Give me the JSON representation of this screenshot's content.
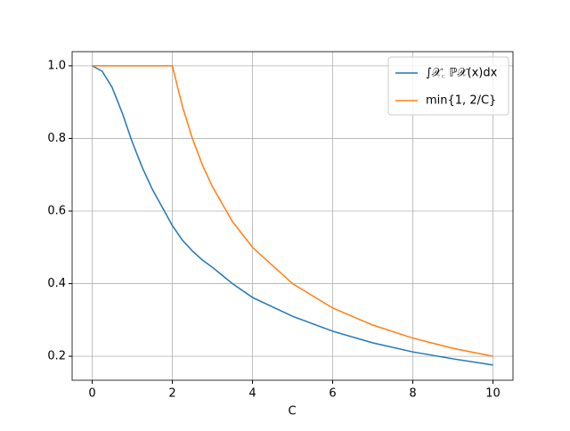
{
  "chart_data": {
    "type": "line",
    "xlabel": "C",
    "x": [
      0,
      0.25,
      0.5,
      0.75,
      1,
      1.25,
      1.5,
      1.75,
      2,
      2.25,
      2.5,
      2.75,
      3,
      3.5,
      4,
      5,
      6,
      7,
      8,
      9,
      10
    ],
    "series": [
      {
        "name": "∫𝒳꜀ ℙ𝒳(x)dx",
        "color": "#1f77b4",
        "values": [
          1.0,
          0.985,
          0.94,
          0.87,
          0.79,
          0.72,
          0.66,
          0.61,
          0.56,
          0.52,
          0.49,
          0.465,
          0.445,
          0.4,
          0.362,
          0.31,
          0.269,
          0.237,
          0.212,
          0.193,
          0.176
        ]
      },
      {
        "name": "min{1, 2/C}",
        "color": "#ff7f0e",
        "values": [
          1,
          1,
          1,
          1,
          1,
          1,
          1,
          1,
          1,
          0.889,
          0.8,
          0.727,
          0.667,
          0.571,
          0.5,
          0.4,
          0.333,
          0.286,
          0.25,
          0.222,
          0.2
        ]
      }
    ],
    "xlim": [
      -0.5,
      10.5
    ],
    "ylim": [
      0.134,
      1.039
    ],
    "xticks": [
      0,
      2,
      4,
      6,
      8,
      10
    ],
    "yticks": [
      0.2,
      0.4,
      0.6,
      0.8,
      {
        "value": 1,
        "label": "1.0"
      }
    ],
    "grid": true,
    "legend": "upper right"
  }
}
